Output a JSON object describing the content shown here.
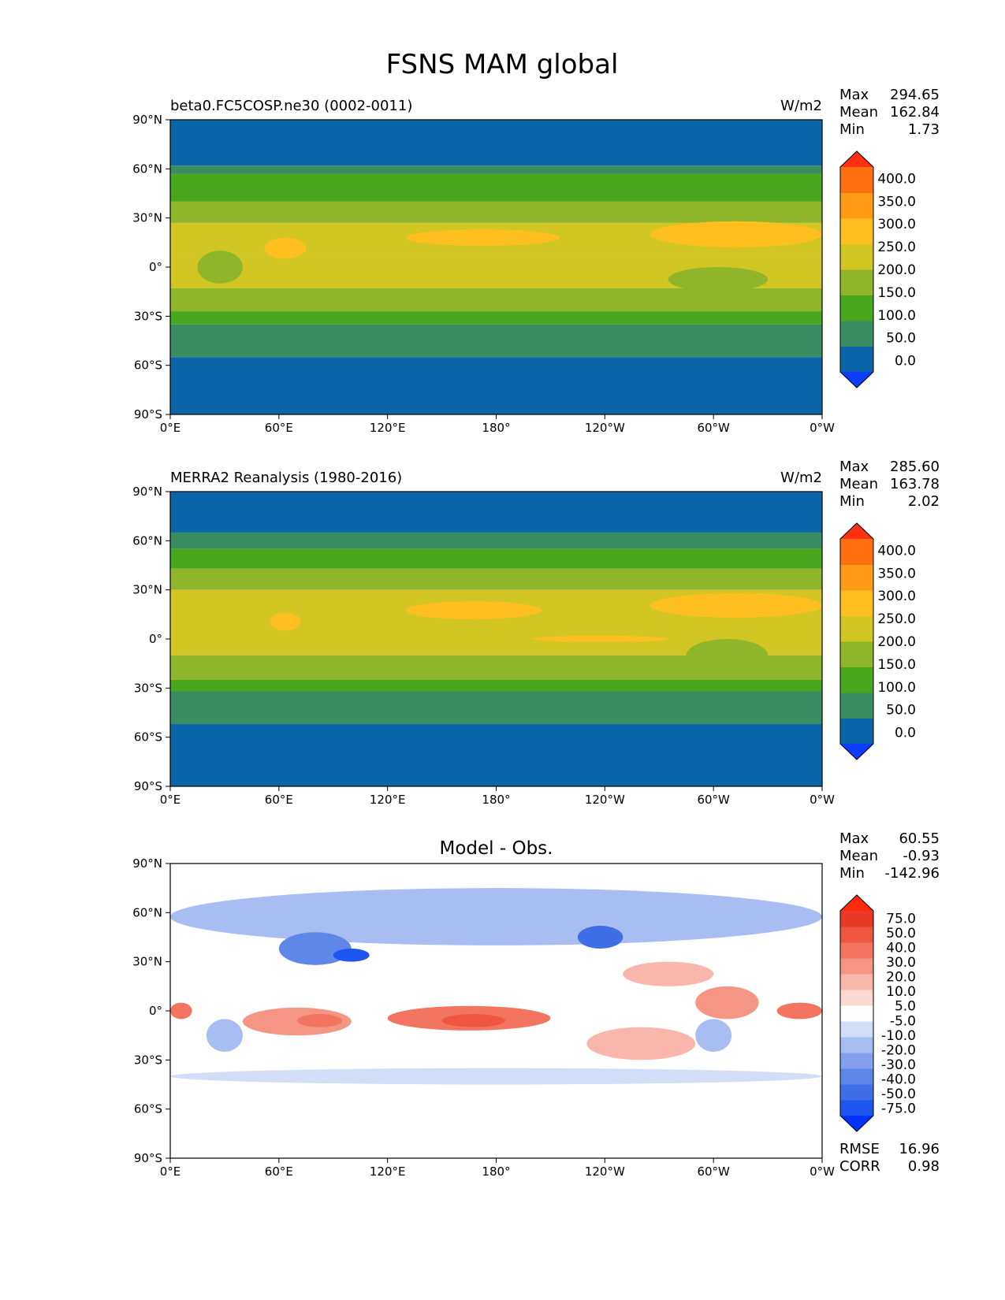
{
  "figure": {
    "title": "FSNS MAM global"
  },
  "chart_data": [
    {
      "type": "heatmap",
      "panel": "test",
      "title_left": "beta0.FC5COSP.ne30 (0002-0011)",
      "title_center": "",
      "units": "W/m2",
      "stats": {
        "Max": "294.65",
        "Mean": "162.84",
        "Min": "1.73"
      },
      "colorbar": {
        "levels": [
          0,
          50,
          100,
          150,
          200,
          250,
          300,
          350,
          400
        ],
        "tick_labels": [
          "400.0",
          "350.0",
          "300.0",
          "250.0",
          "200.0",
          "150.0",
          "100.0",
          "50.0",
          "0.0"
        ],
        "colors": [
          "#0b3cff",
          "#0a66a8",
          "#3a8c62",
          "#4aa61d",
          "#8fb52a",
          "#d1c623",
          "#ffbf1f",
          "#ff9a16",
          "#ff6e10",
          "#ff3014"
        ],
        "extend": "both"
      },
      "x_ticks": [
        "0°E",
        "60°E",
        "120°E",
        "180°",
        "120°W",
        "60°W",
        "0°W"
      ],
      "y_ticks": [
        "90°N",
        "60°N",
        "30°N",
        "0°",
        "30°S",
        "60°S",
        "90°S"
      ],
      "xlim": [
        0,
        360
      ],
      "ylim": [
        -90,
        90
      ],
      "zonal_bands": [
        {
          "lat": [
            62,
            90
          ],
          "value": 25
        },
        {
          "lat": [
            57,
            62
          ],
          "value": 75
        },
        {
          "lat": [
            40,
            57
          ],
          "value": 125
        },
        {
          "lat": [
            27,
            40
          ],
          "value": 175
        },
        {
          "lat": [
            7,
            27
          ],
          "value": 225
        },
        {
          "lat": [
            -13,
            7
          ],
          "value": 225
        },
        {
          "lat": [
            -27,
            -13
          ],
          "value": 175
        },
        {
          "lat": [
            -35,
            -27
          ],
          "value": 125
        },
        {
          "lat": [
            -55,
            -35
          ],
          "value": 75
        },
        {
          "lat": [
            -90,
            -55
          ],
          "value": 25
        }
      ],
      "patches": [
        {
          "lon": [
            130,
            215
          ],
          "lat": [
            13,
            23
          ],
          "value": 275
        },
        {
          "lon": [
            265,
            360
          ],
          "lat": [
            12,
            28
          ],
          "value": 275
        },
        {
          "lon": [
            52,
            75
          ],
          "lat": [
            5,
            18
          ],
          "value": 275
        },
        {
          "lon": [
            275,
            330
          ],
          "lat": [
            -15,
            0
          ],
          "value": 175
        },
        {
          "lon": [
            15,
            40
          ],
          "lat": [
            -10,
            10
          ],
          "value": 175
        }
      ]
    },
    {
      "type": "heatmap",
      "panel": "reference",
      "title_left": "MERRA2 Reanalysis (1980-2016)",
      "title_center": "",
      "units": "W/m2",
      "stats": {
        "Max": "285.60",
        "Mean": "163.78",
        "Min": "2.02"
      },
      "colorbar": {
        "levels": [
          0,
          50,
          100,
          150,
          200,
          250,
          300,
          350,
          400
        ],
        "tick_labels": [
          "400.0",
          "350.0",
          "300.0",
          "250.0",
          "200.0",
          "150.0",
          "100.0",
          "50.0",
          "0.0"
        ],
        "colors": [
          "#0b3cff",
          "#0a66a8",
          "#3a8c62",
          "#4aa61d",
          "#8fb52a",
          "#d1c623",
          "#ffbf1f",
          "#ff9a16",
          "#ff6e10",
          "#ff3014"
        ],
        "extend": "both"
      },
      "x_ticks": [
        "0°E",
        "60°E",
        "120°E",
        "180°",
        "120°W",
        "60°W",
        "0°W"
      ],
      "y_ticks": [
        "90°N",
        "60°N",
        "30°N",
        "0°",
        "30°S",
        "60°S",
        "90°S"
      ],
      "xlim": [
        0,
        360
      ],
      "ylim": [
        -90,
        90
      ],
      "zonal_bands": [
        {
          "lat": [
            65,
            90
          ],
          "value": 25
        },
        {
          "lat": [
            55,
            65
          ],
          "value": 75
        },
        {
          "lat": [
            43,
            55
          ],
          "value": 125
        },
        {
          "lat": [
            30,
            43
          ],
          "value": 175
        },
        {
          "lat": [
            -10,
            30
          ],
          "value": 225
        },
        {
          "lat": [
            -25,
            -10
          ],
          "value": 175
        },
        {
          "lat": [
            -32,
            -25
          ],
          "value": 125
        },
        {
          "lat": [
            -52,
            -32
          ],
          "value": 75
        },
        {
          "lat": [
            -90,
            -52
          ],
          "value": 25
        }
      ],
      "patches": [
        {
          "lon": [
            130,
            205
          ],
          "lat": [
            12,
            23
          ],
          "value": 275
        },
        {
          "lon": [
            265,
            360
          ],
          "lat": [
            13,
            28
          ],
          "value": 275
        },
        {
          "lon": [
            200,
            275
          ],
          "lat": [
            -2,
            2
          ],
          "value": 275
        },
        {
          "lon": [
            55,
            72
          ],
          "lat": [
            5,
            16
          ],
          "value": 275
        },
        {
          "lon": [
            285,
            330
          ],
          "lat": [
            -20,
            0
          ],
          "value": 175
        }
      ]
    },
    {
      "type": "heatmap",
      "panel": "difference",
      "title_left": "",
      "title_center": "Model - Obs.",
      "units": "",
      "stats": {
        "Max": "60.55",
        "Mean": "-0.93",
        "Min": "-142.96"
      },
      "extra_stats": {
        "RMSE": "16.96",
        "CORR": "0.98"
      },
      "colorbar": {
        "levels": [
          -75,
          -50,
          -40,
          -30,
          -20,
          -10,
          -5,
          5,
          10,
          20,
          30,
          40,
          50,
          75
        ],
        "tick_labels": [
          "75.0",
          "50.0",
          "40.0",
          "30.0",
          "20.0",
          "10.0",
          "5.0",
          "-5.0",
          "-10.0",
          "-20.0",
          "-30.0",
          "-40.0",
          "-50.0",
          "-75.0"
        ],
        "colors": [
          "#0033ff",
          "#1f55f0",
          "#3f6ee6",
          "#5f87e8",
          "#82a0ec",
          "#a8bdf1",
          "#d2ddf8",
          "#ffffff",
          "#fcd8d2",
          "#f9b6aa",
          "#f59584",
          "#f27461",
          "#ee5640",
          "#e83a25",
          "#ff2a0a"
        ],
        "extend": "both"
      },
      "x_ticks": [
        "0°E",
        "60°E",
        "120°E",
        "180°",
        "120°W",
        "60°W",
        "0°W"
      ],
      "y_ticks": [
        "90°N",
        "60°N",
        "30°N",
        "0°",
        "30°S",
        "60°S",
        "90°S"
      ],
      "xlim": [
        0,
        360
      ],
      "ylim": [
        -90,
        90
      ],
      "zonal_bands": [
        {
          "lat": [
            -90,
            90
          ],
          "value": 0
        }
      ],
      "patches": [
        {
          "lon": [
            0,
            360
          ],
          "lat": [
            40,
            75
          ],
          "value": -15
        },
        {
          "lon": [
            60,
            100
          ],
          "lat": [
            28,
            48
          ],
          "value": -35
        },
        {
          "lon": [
            90,
            110
          ],
          "lat": [
            30,
            38
          ],
          "value": -60
        },
        {
          "lon": [
            225,
            250
          ],
          "lat": [
            38,
            52
          ],
          "value": -45
        },
        {
          "lon": [
            40,
            100
          ],
          "lat": [
            -15,
            2
          ],
          "value": 25
        },
        {
          "lon": [
            70,
            95
          ],
          "lat": [
            -10,
            -2
          ],
          "value": 35
        },
        {
          "lon": [
            120,
            210
          ],
          "lat": [
            -12,
            3
          ],
          "value": 30
        },
        {
          "lon": [
            150,
            185
          ],
          "lat": [
            -10,
            -2
          ],
          "value": 45
        },
        {
          "lon": [
            230,
            290
          ],
          "lat": [
            -30,
            -10
          ],
          "value": 15
        },
        {
          "lon": [
            290,
            325
          ],
          "lat": [
            -5,
            15
          ],
          "value": 25
        },
        {
          "lon": [
            335,
            360
          ],
          "lat": [
            -5,
            5
          ],
          "value": 30
        },
        {
          "lon": [
            0,
            12
          ],
          "lat": [
            -5,
            5
          ],
          "value": 30
        },
        {
          "lon": [
            250,
            300
          ],
          "lat": [
            15,
            30
          ],
          "value": 15
        },
        {
          "lon": [
            20,
            40
          ],
          "lat": [
            -25,
            -5
          ],
          "value": -15
        },
        {
          "lon": [
            290,
            310
          ],
          "lat": [
            -25,
            -5
          ],
          "value": -20
        },
        {
          "lon": [
            0,
            360
          ],
          "lat": [
            -45,
            -35
          ],
          "value": -8
        }
      ]
    }
  ]
}
